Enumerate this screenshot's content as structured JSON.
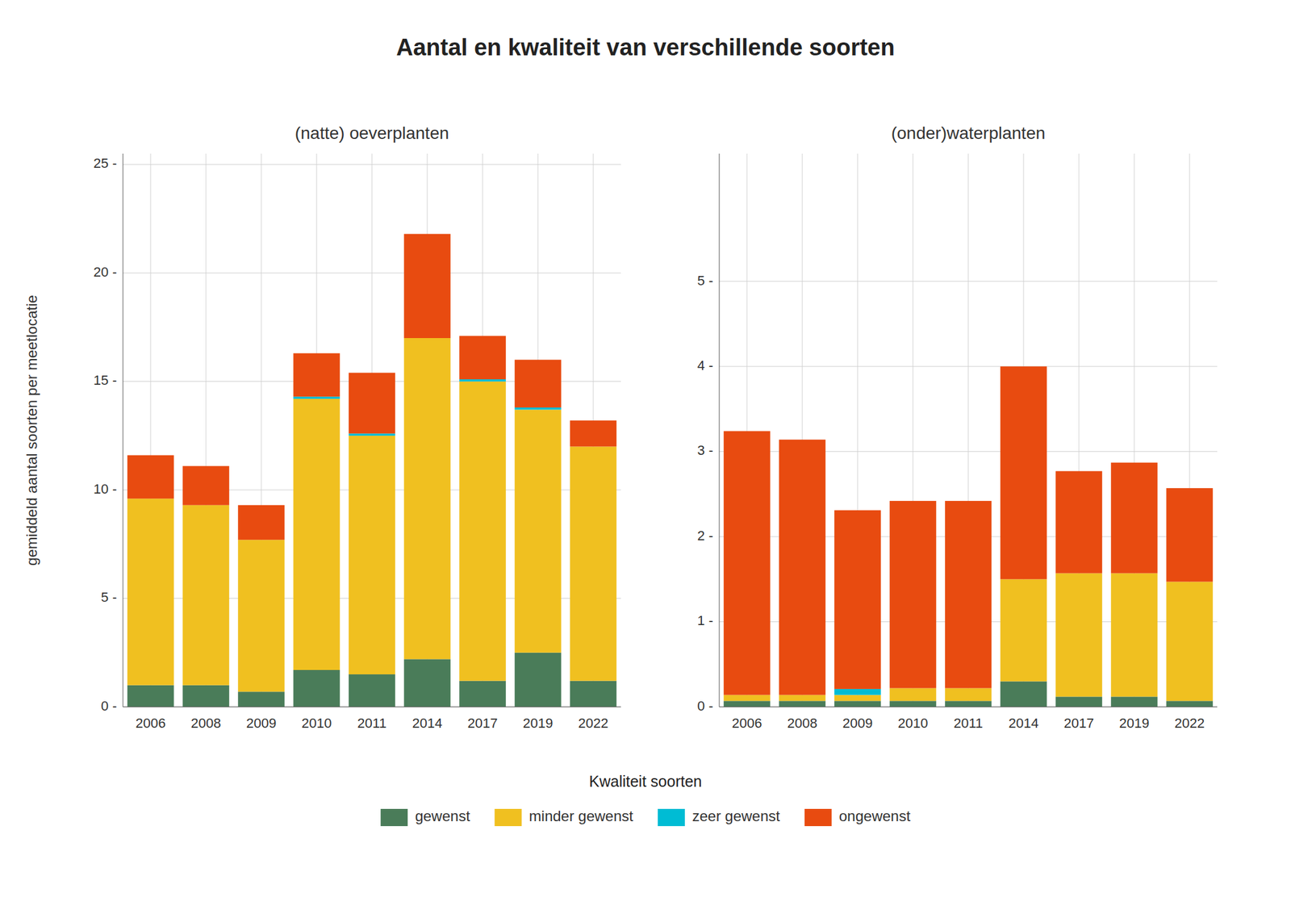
{
  "title": "Aantal en kwaliteit van verschillende soorten",
  "legend_title": "Kwaliteit soorten",
  "chart_data": [
    {
      "type": "bar",
      "stacked": true,
      "grid": true,
      "title": "(natte) oeverplanten",
      "ylabel": "gemiddeld aantal soorten per meetlocatie",
      "categories": [
        "2006",
        "2008",
        "2009",
        "2010",
        "2011",
        "2014",
        "2017",
        "2019",
        "2022"
      ],
      "series": [
        {
          "name": "gewenst",
          "color": "#4a7c59",
          "values": [
            1.0,
            1.0,
            0.7,
            1.7,
            1.5,
            2.2,
            1.2,
            2.5,
            1.2
          ]
        },
        {
          "name": "minder gewenst",
          "color": "#f0c020",
          "values": [
            8.6,
            8.3,
            7.0,
            12.5,
            11.0,
            14.8,
            13.8,
            11.2,
            10.8
          ]
        },
        {
          "name": "zeer gewenst",
          "color": "#00bcd4",
          "values": [
            0.0,
            0.0,
            0.0,
            0.1,
            0.1,
            0.0,
            0.1,
            0.1,
            0.0
          ]
        },
        {
          "name": "ongewenst",
          "color": "#e84b10",
          "values": [
            2.0,
            1.8,
            1.6,
            2.0,
            2.8,
            4.8,
            2.0,
            2.2,
            1.2
          ]
        }
      ],
      "ylim": [
        0,
        25.5
      ],
      "yticks": [
        {
          "value": 0,
          "label": "0 -"
        },
        {
          "value": 5,
          "label": "5 -"
        },
        {
          "value": 10,
          "label": "10 -"
        },
        {
          "value": 15,
          "label": "15 -"
        },
        {
          "value": 20,
          "label": "20 -"
        },
        {
          "value": 25,
          "label": "25 -"
        }
      ]
    },
    {
      "type": "bar",
      "stacked": true,
      "grid": true,
      "title": "(onder)waterplanten",
      "categories": [
        "2006",
        "2008",
        "2009",
        "2010",
        "2011",
        "2014",
        "2017",
        "2019",
        "2022"
      ],
      "series": [
        {
          "name": "gewenst",
          "color": "#4a7c59",
          "values": [
            0.07,
            0.07,
            0.07,
            0.07,
            0.07,
            0.3,
            0.12,
            0.12,
            0.07
          ]
        },
        {
          "name": "minder gewenst",
          "color": "#f0c020",
          "values": [
            0.07,
            0.07,
            0.07,
            0.15,
            0.15,
            1.2,
            1.45,
            1.45,
            1.4
          ]
        },
        {
          "name": "zeer gewenst",
          "color": "#00bcd4",
          "values": [
            0.0,
            0.0,
            0.07,
            0.0,
            0.0,
            0.0,
            0.0,
            0.0,
            0.0
          ]
        },
        {
          "name": "ongewenst",
          "color": "#e84b10",
          "values": [
            3.1,
            3.0,
            2.1,
            2.2,
            2.2,
            2.5,
            1.2,
            1.3,
            1.1
          ]
        }
      ],
      "ylim": [
        0,
        6.5
      ],
      "yticks": [
        {
          "value": 0,
          "label": "0 -"
        },
        {
          "value": 1,
          "label": "1 -"
        },
        {
          "value": 2,
          "label": "2 -"
        },
        {
          "value": 3,
          "label": "3 -"
        },
        {
          "value": 4,
          "label": "4 -"
        },
        {
          "value": 5,
          "label": "5 -"
        }
      ]
    }
  ]
}
